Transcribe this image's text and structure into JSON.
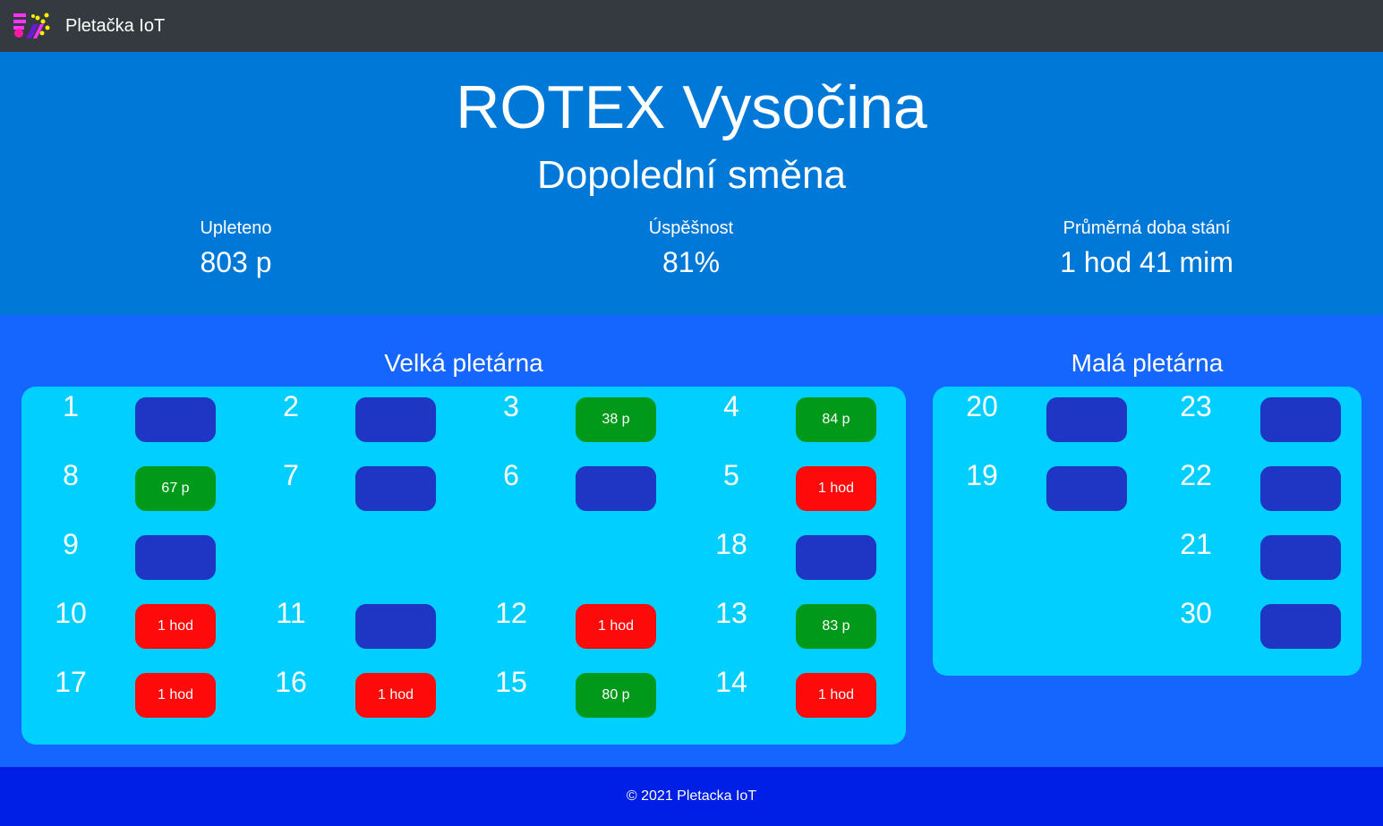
{
  "nav": {
    "brand": "Pletačka IoT",
    "logo_icon": "pletacka-logo"
  },
  "hero": {
    "title": "ROTEX Vysočina",
    "shift": "Dopolední směna",
    "stats": [
      {
        "label": "Upleteno",
        "value": "803 p"
      },
      {
        "label": "Úspěšnost",
        "value": "81%"
      },
      {
        "label": "Průměrná doba stání",
        "value": "1 hod 41 mim"
      }
    ]
  },
  "halls": {
    "big": {
      "title": "Velká pletárna",
      "rows": [
        [
          {
            "num": "1",
            "state": "idle",
            "text": ""
          },
          {
            "num": "2",
            "state": "idle",
            "text": ""
          },
          {
            "num": "3",
            "state": "ok",
            "text": "38 p"
          },
          {
            "num": "4",
            "state": "ok",
            "text": "84 p"
          }
        ],
        [
          {
            "num": "8",
            "state": "ok",
            "text": "67 p"
          },
          {
            "num": "7",
            "state": "idle",
            "text": ""
          },
          {
            "num": "6",
            "state": "idle",
            "text": ""
          },
          {
            "num": "5",
            "state": "alarm",
            "text": "1 hod"
          }
        ],
        [
          {
            "num": "9",
            "state": "idle",
            "text": ""
          },
          null,
          null,
          {
            "num": "18",
            "state": "idle",
            "text": ""
          }
        ],
        [
          {
            "num": "10",
            "state": "alarm",
            "text": "1 hod"
          },
          {
            "num": "11",
            "state": "idle",
            "text": ""
          },
          {
            "num": "12",
            "state": "alarm",
            "text": "1 hod"
          },
          {
            "num": "13",
            "state": "ok",
            "text": "83 p"
          }
        ],
        [
          {
            "num": "17",
            "state": "alarm",
            "text": "1 hod"
          },
          {
            "num": "16",
            "state": "alarm",
            "text": "1 hod"
          },
          {
            "num": "15",
            "state": "ok",
            "text": "80 p"
          },
          {
            "num": "14",
            "state": "alarm",
            "text": "1 hod"
          }
        ]
      ]
    },
    "small": {
      "title": "Malá pletárna",
      "rows": [
        [
          {
            "num": "20",
            "state": "idle",
            "text": ""
          },
          {
            "num": "23",
            "state": "idle",
            "text": ""
          }
        ],
        [
          {
            "num": "19",
            "state": "idle",
            "text": ""
          },
          {
            "num": "22",
            "state": "idle",
            "text": ""
          }
        ],
        [
          null,
          {
            "num": "21",
            "state": "idle",
            "text": ""
          }
        ],
        [
          null,
          {
            "num": "30",
            "state": "idle",
            "text": ""
          }
        ]
      ]
    }
  },
  "colors": {
    "idle": "#1f35c4",
    "ok": "#00991a",
    "alarm": "#ff0a0a",
    "panel": "#00cfff"
  },
  "footer": {
    "text": "© 2021 Pletacka IoT"
  }
}
